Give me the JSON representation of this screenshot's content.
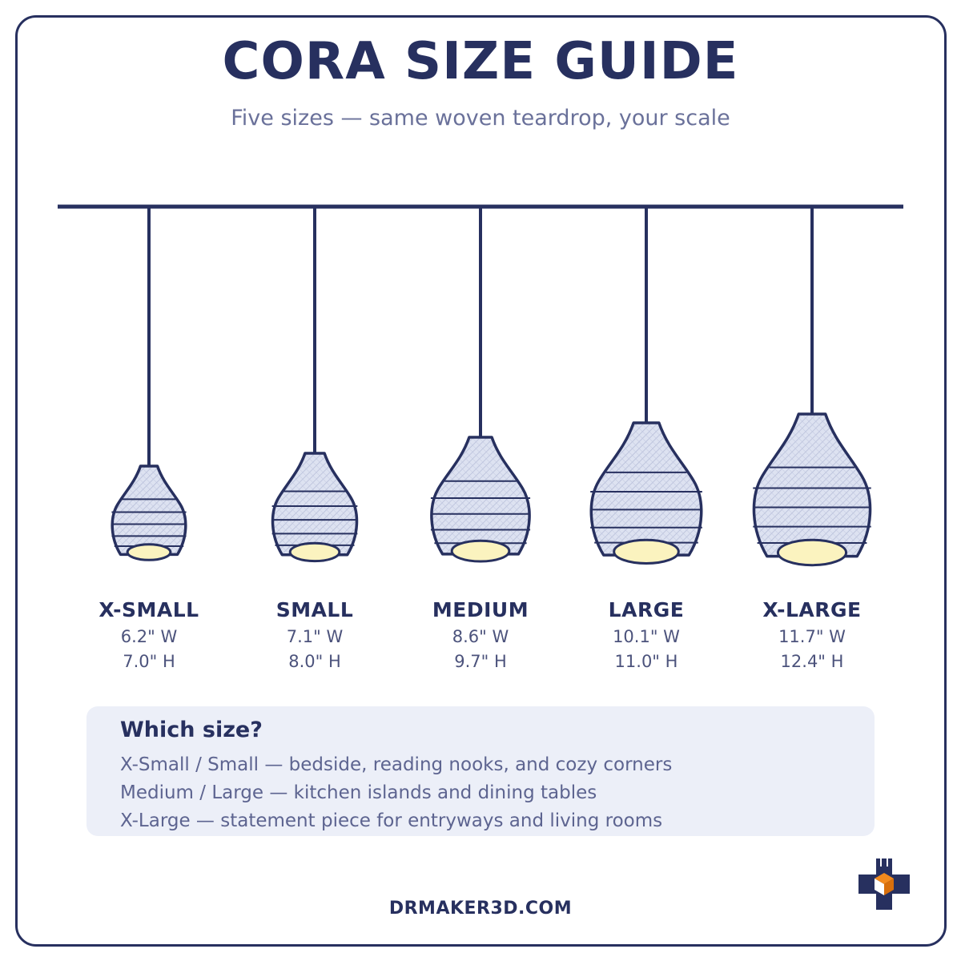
{
  "header": {
    "title": "CORA SIZE GUIDE",
    "subtitle": "Five sizes — same woven teardrop, your scale"
  },
  "sizes": [
    {
      "name": "X-SMALL",
      "width": "6.2\" W",
      "height": "7.0\" H"
    },
    {
      "name": "SMALL",
      "width": "7.1\" W",
      "height": "8.0\" H"
    },
    {
      "name": "MEDIUM",
      "width": "8.6\" W",
      "height": "9.7\" H"
    },
    {
      "name": "LARGE",
      "width": "10.1\" W",
      "height": "11.0\" H"
    },
    {
      "name": "X-LARGE",
      "width": "11.7\" W",
      "height": "12.4\" H"
    }
  ],
  "guide": {
    "title": "Which size?",
    "lines": [
      "X-Small / Small — bedside, reading nooks, and cozy corners",
      "Medium / Large — kitchen islands and dining tables",
      "X-Large — statement piece for entryways and living rooms"
    ]
  },
  "footer": {
    "website": "DRMAKER3D.COM"
  },
  "colors": {
    "navy": "#27305f",
    "shade_fill": "#dde2f1",
    "bulb_glow": "#fbf3bf",
    "panel": "#eceff8",
    "logo_accent": "#f28a1e"
  }
}
